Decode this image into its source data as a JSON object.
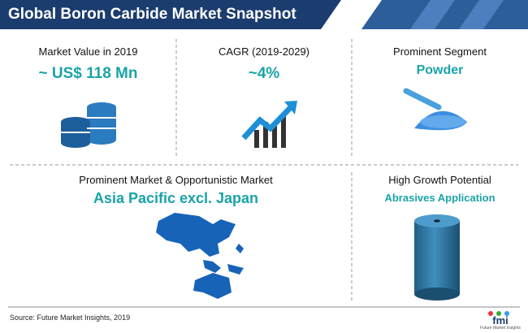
{
  "header": {
    "title": "Global Boron Carbide Market Snapshot"
  },
  "panels": [
    {
      "label": "Market Value in 2019",
      "value": "~ US$ 118 Mn"
    },
    {
      "label": "CAGR (2019-2029)",
      "value": "~4%"
    },
    {
      "label": "Prominent Segment",
      "value": "Powder"
    },
    {
      "label": "Prominent Market & Opportunistic Market",
      "value": "Asia Pacific excl. Japan"
    },
    {
      "label": "High Growth Potential",
      "value": "Abrasives Application"
    }
  ],
  "footer": {
    "source": "Source: Future Market Insights, 2019",
    "logo": "fmi",
    "logo_caption": "Future Market Insights"
  }
}
